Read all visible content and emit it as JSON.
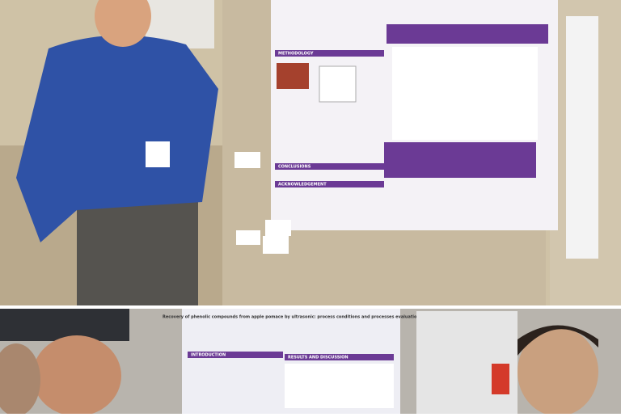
{
  "top_photo": {
    "poster": {
      "headings": [
        "METHODOLOGY",
        "CONCLUSIONS",
        "ACKNOWLEDGEMENT"
      ]
    }
  },
  "bottom_photo": {
    "poster": {
      "title": "Recovery of phenolic compounds from apple pomace by ultrasonic: process conditions and processes evaluation",
      "headings": [
        "INTRODUCTION",
        "RESULTS AND DISCUSSION"
      ]
    }
  }
}
